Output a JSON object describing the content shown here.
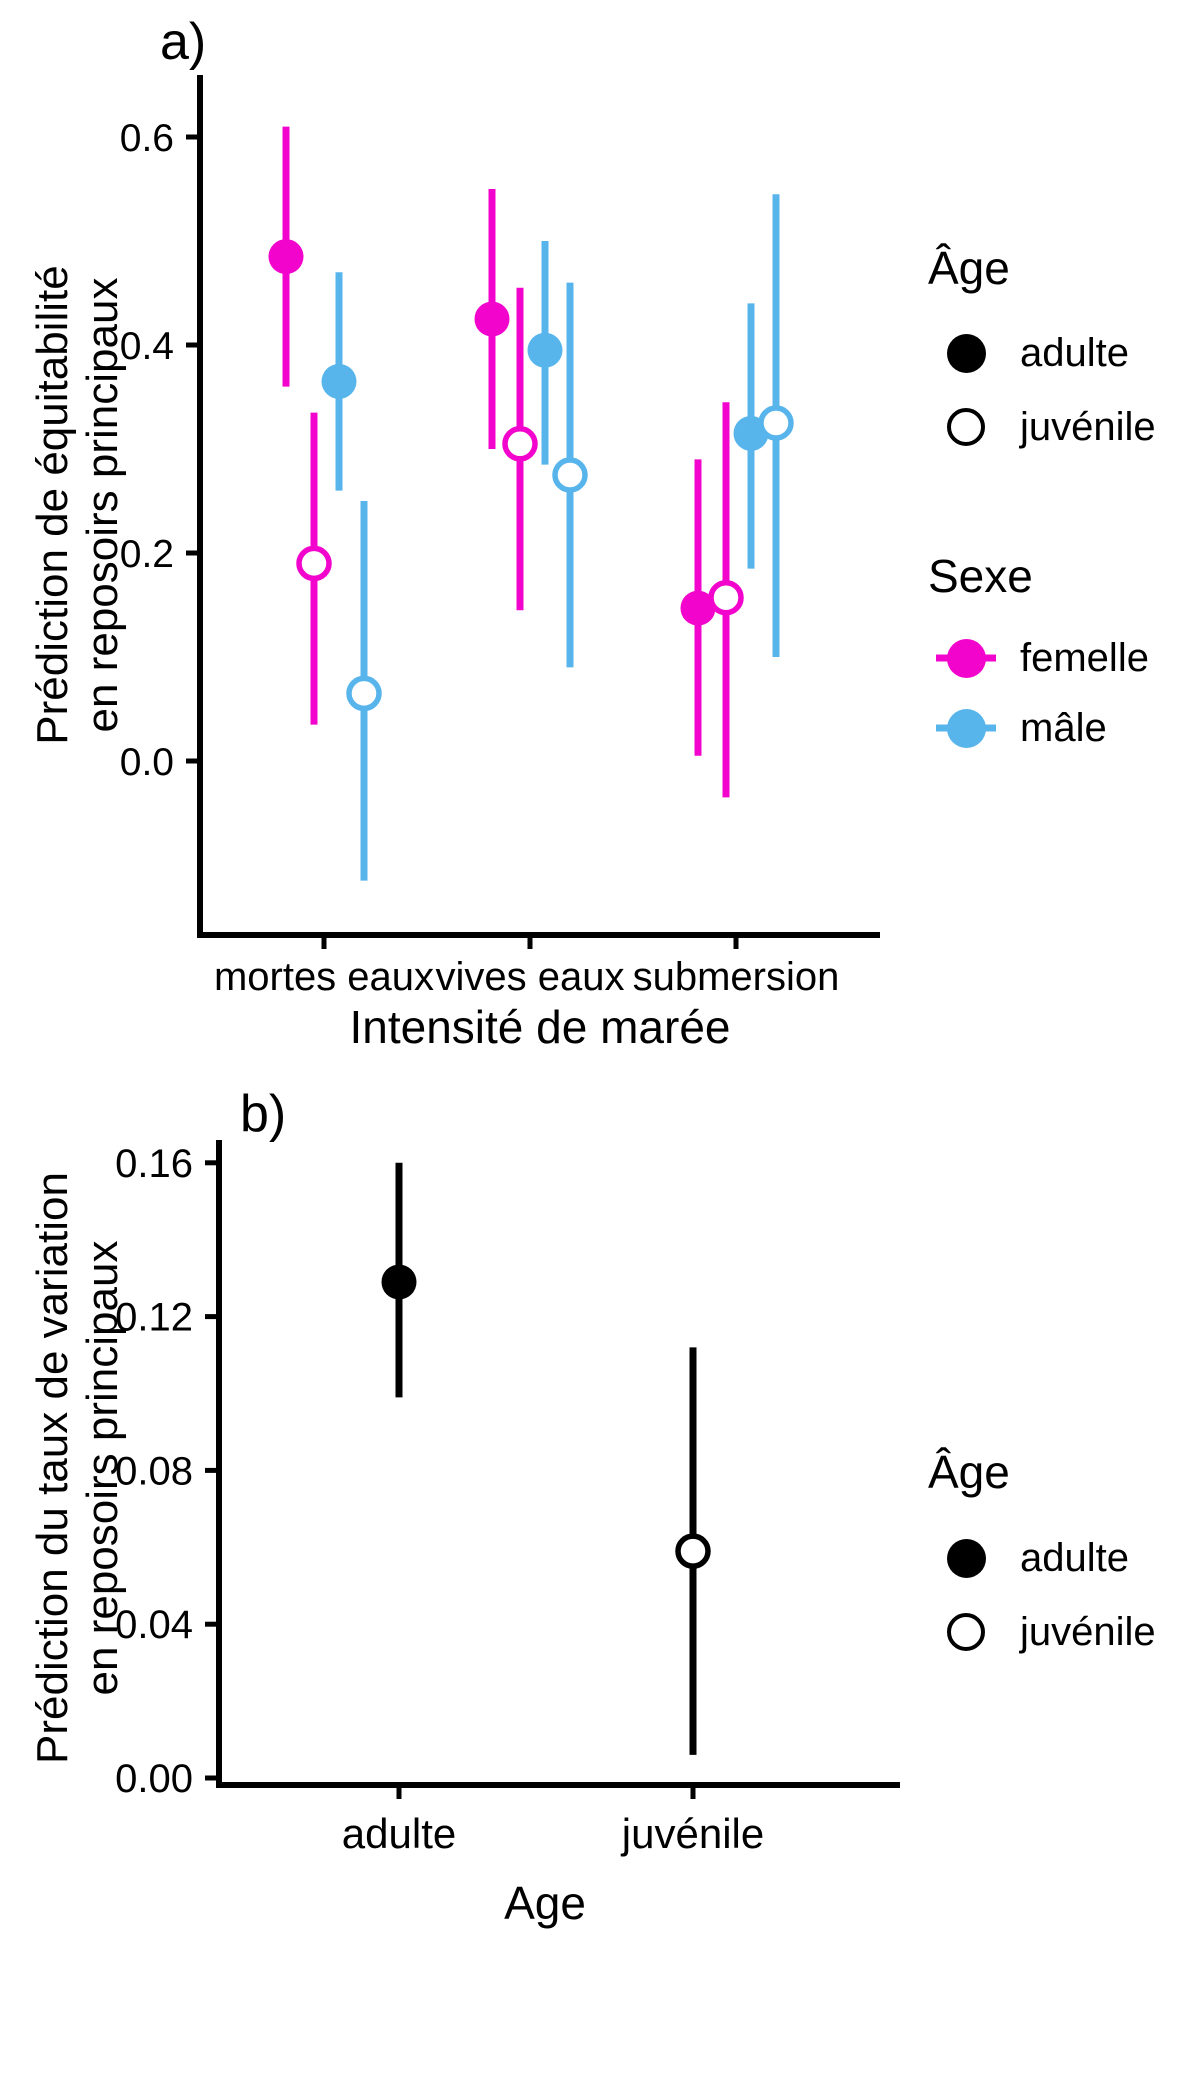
{
  "chart_data": [
    {
      "id": "a",
      "type": "pointrange",
      "title": "a)",
      "xlabel": "Intensité de marée",
      "ylabel_lines": [
        "Prédiction de équitabilité",
        "en reposoirs principaux"
      ],
      "categories": [
        "mortes eaux",
        "vives eaux",
        "submersion"
      ],
      "y_ticks": [
        "0.6",
        "0.4",
        "0.2",
        "0.0"
      ],
      "y_tick_values": [
        0.6,
        0.4,
        0.2,
        0.0
      ],
      "ylim": [
        -0.17,
        0.66
      ],
      "grid": "off",
      "legend_position": "right",
      "legend": {
        "age": {
          "title": "Âge",
          "items": [
            {
              "label": "adulte",
              "style": "filled",
              "color": "#000000"
            },
            {
              "label": "juvénile",
              "style": "open",
              "color": "#000000"
            }
          ]
        },
        "sexe": {
          "title": "Sexe",
          "items": [
            {
              "label": "femelle",
              "style": "pointrange",
              "color": "#F204CC"
            },
            {
              "label": "mâle",
              "style": "pointrange",
              "color": "#58B5EC"
            }
          ]
        }
      },
      "series": [
        {
          "name": "femelle-adulte",
          "sexe": "femelle",
          "age": "adulte",
          "color": "#F204CC",
          "style": "filled",
          "points": [
            {
              "category": "mortes eaux",
              "y": 0.485,
              "lo": 0.36,
              "hi": 0.61
            },
            {
              "category": "vives eaux",
              "y": 0.425,
              "lo": 0.3,
              "hi": 0.55
            },
            {
              "category": "submersion",
              "y": 0.147,
              "lo": 0.005,
              "hi": 0.29
            }
          ]
        },
        {
          "name": "femelle-juvenile",
          "sexe": "femelle",
          "age": "juvénile",
          "color": "#F204CC",
          "style": "open",
          "points": [
            {
              "category": "mortes eaux",
              "y": 0.19,
              "lo": 0.035,
              "hi": 0.335
            },
            {
              "category": "vives eaux",
              "y": 0.305,
              "lo": 0.145,
              "hi": 0.455
            },
            {
              "category": "submersion",
              "y": 0.157,
              "lo": -0.035,
              "hi": 0.345
            }
          ]
        },
        {
          "name": "male-adulte",
          "sexe": "mâle",
          "age": "adulte",
          "color": "#58B5EC",
          "style": "filled",
          "points": [
            {
              "category": "mortes eaux",
              "y": 0.365,
              "lo": 0.26,
              "hi": 0.47
            },
            {
              "category": "vives eaux",
              "y": 0.395,
              "lo": 0.285,
              "hi": 0.5
            },
            {
              "category": "submersion",
              "y": 0.315,
              "lo": 0.185,
              "hi": 0.44
            }
          ]
        },
        {
          "name": "male-juvenile",
          "sexe": "mâle",
          "age": "juvénile",
          "color": "#58B5EC",
          "style": "open",
          "points": [
            {
              "category": "mortes eaux",
              "y": 0.065,
              "lo": -0.115,
              "hi": 0.25
            },
            {
              "category": "vives eaux",
              "y": 0.275,
              "lo": 0.09,
              "hi": 0.46
            },
            {
              "category": "submersion",
              "y": 0.325,
              "lo": 0.1,
              "hi": 0.545
            }
          ]
        }
      ]
    },
    {
      "id": "b",
      "type": "pointrange",
      "title": "b)",
      "xlabel": "Age",
      "ylabel_lines": [
        "Prédiction du taux de variation",
        "en reposoirs principaux"
      ],
      "categories": [
        "adulte",
        "juvénile"
      ],
      "y_ticks": [
        "0.16",
        "0.12",
        "0.08",
        "0.04",
        "0.00"
      ],
      "y_tick_values": [
        0.16,
        0.12,
        0.08,
        0.04,
        0.0
      ],
      "ylim": [
        -0.02,
        0.17
      ],
      "grid": "off",
      "legend_position": "right",
      "legend": {
        "age": {
          "title": "Âge",
          "items": [
            {
              "label": "adulte",
              "style": "filled",
              "color": "#000000"
            },
            {
              "label": "juvénile",
              "style": "open",
              "color": "#000000"
            }
          ]
        }
      },
      "series": [
        {
          "name": "adulte",
          "age": "adulte",
          "color": "#000000",
          "style": "filled",
          "points": [
            {
              "category": "adulte",
              "y": 0.129,
              "lo": 0.099,
              "hi": 0.16
            }
          ]
        },
        {
          "name": "juvenile",
          "age": "juvénile",
          "color": "#000000",
          "style": "open",
          "points": [
            {
              "category": "juvénile",
              "y": 0.059,
              "lo": 0.006,
              "hi": 0.112
            }
          ]
        }
      ]
    }
  ]
}
